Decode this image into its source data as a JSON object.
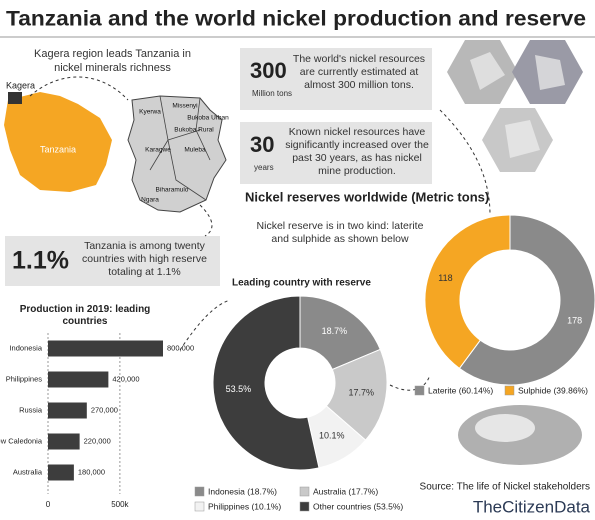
{
  "title": "Tanzania and the world nickel production and reserve",
  "map": {
    "title": "Kagera region leads Tanzania in nickel minerals richness",
    "region_label": "Kagera",
    "country_label": "Tanzania",
    "districts": [
      "Kyerwa",
      "Missenyi",
      "Bukoba Urban",
      "Bukoba Rural",
      "Muleba",
      "Karagwe",
      "Biharamulo",
      "Ngara"
    ]
  },
  "stats": [
    {
      "figure": "300",
      "unit": "Million tons",
      "text": "The world's nickel resources are currently estimated at almost 300 million tons."
    },
    {
      "figure": "30",
      "unit": "years",
      "text": "Known nickel resources have significantly increased over the past 30 years, as has nickel mine production."
    },
    {
      "figure": "1.1%",
      "text": "Tanzania is among twenty countries with high reserve totaling at 1.1%"
    }
  ],
  "source": "Source: The life of Nickel stakeholders",
  "brand": "TheCitizenData",
  "chart_data": [
    {
      "type": "bar",
      "orientation": "horizontal",
      "title": "Production in 2019: leading countries",
      "categories": [
        "Indonesia",
        "Philippines",
        "Russia",
        "New Caledonia",
        "Australia"
      ],
      "values": [
        800000,
        420000,
        270000,
        220000,
        180000
      ],
      "value_labels": [
        "800,000",
        "420,000",
        "270,000",
        "220,000",
        "180,000"
      ],
      "color": "#3d3d3d",
      "xlim": [
        0,
        800000
      ],
      "xticks": [
        0,
        {
          "value": 500000,
          "label": "500k"
        }
      ],
      "grid": true
    },
    {
      "type": "pie",
      "donut": true,
      "title": "Nickel reserves worldwide (Metric tons)",
      "subtitle": "Nickel reserve is in two kind: laterite and sulphide as shown below",
      "categories": [
        "Laterite (60.14%)",
        "Sulphide (39.86%)"
      ],
      "values": [
        178,
        118
      ],
      "colors": [
        "#8a8a8a",
        "#f5a623"
      ]
    },
    {
      "type": "pie",
      "donut": true,
      "title": "Leading country with reserve",
      "categories": [
        "Indonesia (18.7%)",
        "Australia (17.7%)",
        "Philippines (10.1%)",
        "Other countries (53.5%)"
      ],
      "values": [
        18.7,
        17.7,
        10.1,
        53.5
      ],
      "value_labels": [
        "18.7%",
        "17.7%",
        "10.1%",
        "53.5%"
      ],
      "colors": [
        "#8a8a8a",
        "#c9c9c9",
        "#f2f2f2",
        "#3d3d3d"
      ]
    }
  ]
}
